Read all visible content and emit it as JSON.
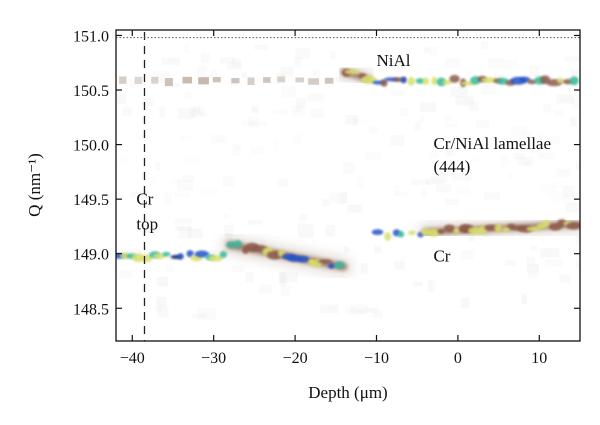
{
  "chart_data": {
    "type": "heatmap",
    "xlabel": "Depth (μm)",
    "ylabel": "Q (nm⁻¹)",
    "xlim": [
      -42,
      15
    ],
    "ylim": [
      148.2,
      151.05
    ],
    "x_ticks": [
      -40,
      -30,
      -20,
      -10,
      0,
      10
    ],
    "y_ticks": [
      148.5,
      149.0,
      149.5,
      150.0,
      150.5,
      151.0
    ],
    "x_tick_labels": [
      "−40",
      "−30",
      "−20",
      "−10",
      "0",
      "10"
    ],
    "y_tick_labels": [
      "148.5",
      "149.0",
      "149.5",
      "150.0",
      "150.5",
      "151.0"
    ],
    "grid": false,
    "reference_lines": [
      {
        "orientation": "vertical",
        "x": -38.5,
        "style": "dashed"
      },
      {
        "orientation": "horizontal",
        "y": 150.98,
        "style": "dotted"
      }
    ],
    "ridges": [
      {
        "name": "NiAl",
        "segments": [
          {
            "x": [
              -42,
              -14
            ],
            "q": 150.58,
            "intensity": "low",
            "dashed": true
          },
          {
            "x": [
              -14,
              -11
            ],
            "q": [
              150.67,
              150.6
            ],
            "intensity": "medium"
          },
          {
            "x": [
              -11,
              15
            ],
            "q": 150.58,
            "intensity": "high"
          }
        ]
      },
      {
        "name": "Cr",
        "segments": [
          {
            "x": [
              -42,
              -28
            ],
            "q": 148.98,
            "intensity": "very-high"
          },
          {
            "x": [
              -28,
              -14
            ],
            "q": [
              149.08,
              148.88
            ],
            "intensity": "high"
          },
          {
            "x": [
              -10,
              -4
            ],
            "q": 149.18,
            "intensity": "high"
          },
          {
            "x": [
              -4,
              15
            ],
            "q": [
              149.2,
              149.27
            ],
            "intensity": "medium"
          }
        ]
      }
    ],
    "annotations": [
      {
        "text": "NiAl",
        "x": -10,
        "y": 150.72
      },
      {
        "text": "Cr/NiAl lamellae",
        "x": -3,
        "y": 149.96
      },
      {
        "text": "(444)",
        "x": -3,
        "y": 149.75
      },
      {
        "text": "Cr",
        "x": -39.5,
        "y": 149.45
      },
      {
        "text": "top",
        "x": -39.5,
        "y": 149.22
      },
      {
        "text": "Cr",
        "x": -3,
        "y": 148.93
      }
    ],
    "colors": {
      "background_haze": "#e2e2e2",
      "low": "#b8a79a",
      "medium": "#8b5a4a",
      "high_yellow": "#d9e06a",
      "high_green": "#34b89a",
      "peak_blue": "#2452c8",
      "peak_navy": "#0a1a66"
    }
  }
}
